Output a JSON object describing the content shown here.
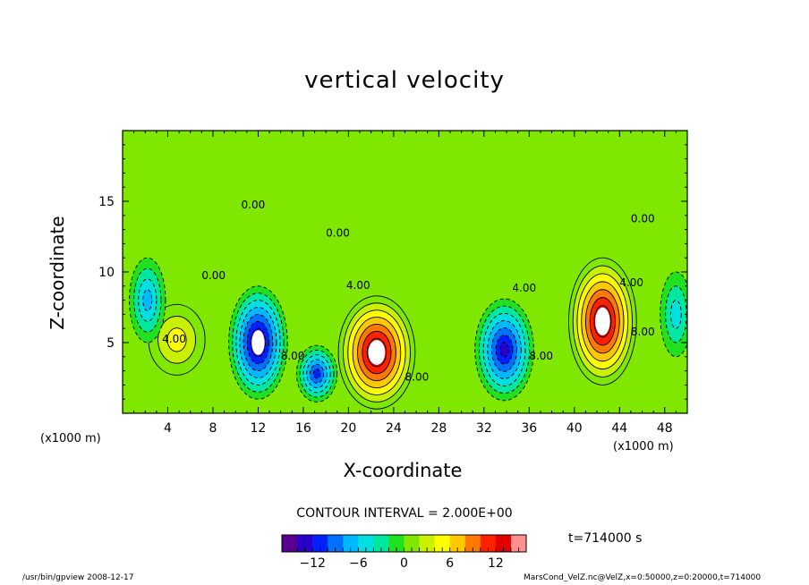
{
  "chart_data": {
    "type": "heatmap",
    "title": "vertical velocity",
    "xlabel": "X-coordinate",
    "ylabel": "Z-coordinate",
    "x_unit": "(x1000 m)",
    "xlim": [
      0,
      50
    ],
    "ylim": [
      0,
      20
    ],
    "x_ticks": [
      4,
      8,
      12,
      16,
      20,
      24,
      28,
      32,
      36,
      40,
      44,
      48
    ],
    "y_ticks": [
      5,
      10,
      15
    ],
    "contour_interval": "CONTOUR INTERVAL = 2.000E+00",
    "colorbar": {
      "min": -16,
      "max": 16,
      "ticks": [
        -12,
        -6,
        0,
        6,
        12
      ]
    },
    "contour_labels": [
      {
        "text": "4.00",
        "x": 3.5,
        "z": 5.0
      },
      {
        "text": "0.00",
        "x": 7.0,
        "z": 9.5
      },
      {
        "text": "0.00",
        "x": 10.5,
        "z": 14.5
      },
      {
        "text": "8.00",
        "x": 14.0,
        "z": 3.8
      },
      {
        "text": "0.00",
        "x": 18.0,
        "z": 12.5
      },
      {
        "text": "4.00",
        "x": 19.8,
        "z": 8.8
      },
      {
        "text": "8.00",
        "x": 25.0,
        "z": 2.3
      },
      {
        "text": "4.00",
        "x": 34.5,
        "z": 8.6
      },
      {
        "text": "8.00",
        "x": 36.0,
        "z": 3.8
      },
      {
        "text": "4.00",
        "x": 44.0,
        "z": 9.0
      },
      {
        "text": "8.00",
        "x": 45.0,
        "z": 5.5
      },
      {
        "text": "0.00",
        "x": 45.0,
        "z": 13.5
      }
    ],
    "features": [
      {
        "sign": "up",
        "x": 4.8,
        "z": 5.2,
        "peak": 6,
        "rx": 2.5,
        "rz": 2.5
      },
      {
        "sign": "down",
        "x": 2.2,
        "z": 8.0,
        "peak": -7,
        "rx": 1.6,
        "rz": 3.0
      },
      {
        "sign": "down",
        "x": 12.0,
        "z": 5.0,
        "peak": -16,
        "rx": 2.6,
        "rz": 4.0
      },
      {
        "sign": "down",
        "x": 17.2,
        "z": 2.8,
        "peak": -12,
        "rx": 1.8,
        "rz": 2.0
      },
      {
        "sign": "up",
        "x": 22.5,
        "z": 4.3,
        "peak": 16,
        "rx": 3.4,
        "rz": 4.0
      },
      {
        "sign": "down",
        "x": 33.8,
        "z": 4.5,
        "peak": -14,
        "rx": 2.6,
        "rz": 3.6
      },
      {
        "sign": "up",
        "x": 42.5,
        "z": 6.5,
        "peak": 16,
        "rx": 3.0,
        "rz": 4.5
      },
      {
        "sign": "down",
        "x": 49.0,
        "z": 7.0,
        "peak": -6,
        "rx": 1.4,
        "rz": 3.0
      }
    ]
  },
  "labels": {
    "x_unit_left": "(x1000 m)",
    "x_unit_right": "(x1000 m)",
    "time": "t=714000 s",
    "footer_left": "/usr/bin/gpview  2008-12-17",
    "footer_right": "MarsCond_VelZ.nc@VelZ,x=0:50000,z=0:20000,t=714000"
  },
  "colors": {
    "palette": [
      "#5a0090",
      "#2a00c8",
      "#0020ff",
      "#0070ff",
      "#00b8ff",
      "#00e0e0",
      "#00e8a0",
      "#20e020",
      "#80e800",
      "#c8f000",
      "#ffff00",
      "#ffc800",
      "#ff7800",
      "#ff2000",
      "#e00000",
      "#ff9090"
    ],
    "contour": "#000000"
  }
}
